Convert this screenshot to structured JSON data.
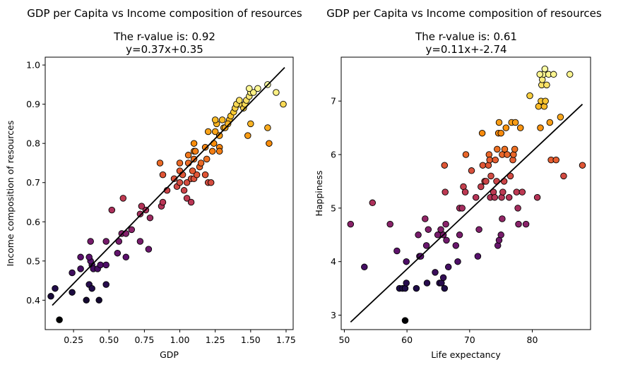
{
  "chart_data": [
    {
      "type": "scatter",
      "title": "GDP per Capita vs Income composition of resources",
      "subtitle_line1": "The r-value is: 0.92",
      "subtitle_line2": "y=0.37x+0.35",
      "xlabel": "GDP",
      "ylabel": "Income composition of resources",
      "xlim": [
        0.05,
        1.8
      ],
      "ylim": [
        0.325,
        1.02
      ],
      "xticks": [
        0.25,
        0.5,
        0.75,
        1.0,
        1.25,
        1.5,
        1.75
      ],
      "xtick_labels": [
        "0.25",
        "0.50",
        "0.75",
        "1.00",
        "1.25",
        "1.50",
        "1.75"
      ],
      "yticks": [
        0.4,
        0.5,
        0.6,
        0.7,
        0.8,
        0.9,
        1.0
      ],
      "ytick_labels": [
        "0.4",
        "0.5",
        "0.6",
        "0.7",
        "0.8",
        "0.9",
        "1.0"
      ],
      "grid": false,
      "colormap": "inferno",
      "regression": {
        "slope": 0.37,
        "intercept": 0.35,
        "x_range": [
          0.1,
          1.74
        ],
        "color": "#000000"
      },
      "points": [
        [
          0.15,
          0.35
        ],
        [
          0.09,
          0.41
        ],
        [
          0.12,
          0.43
        ],
        [
          0.24,
          0.42
        ],
        [
          0.34,
          0.4
        ],
        [
          0.43,
          0.4
        ],
        [
          0.36,
          0.44
        ],
        [
          0.38,
          0.43
        ],
        [
          0.48,
          0.44
        ],
        [
          0.38,
          0.49
        ],
        [
          0.37,
          0.5
        ],
        [
          0.39,
          0.48
        ],
        [
          0.42,
          0.48
        ],
        [
          0.44,
          0.49
        ],
        [
          0.48,
          0.49
        ],
        [
          0.24,
          0.47
        ],
        [
          0.3,
          0.48
        ],
        [
          0.36,
          0.51
        ],
        [
          0.3,
          0.51
        ],
        [
          0.37,
          0.55
        ],
        [
          0.48,
          0.55
        ],
        [
          0.56,
          0.52
        ],
        [
          0.62,
          0.51
        ],
        [
          0.57,
          0.55
        ],
        [
          0.59,
          0.57
        ],
        [
          0.62,
          0.57
        ],
        [
          0.66,
          0.58
        ],
        [
          0.72,
          0.55
        ],
        [
          0.78,
          0.53
        ],
        [
          0.72,
          0.62
        ],
        [
          0.76,
          0.63
        ],
        [
          0.79,
          0.61
        ],
        [
          0.6,
          0.66
        ],
        [
          0.52,
          0.63
        ],
        [
          0.73,
          0.64
        ],
        [
          0.87,
          0.64
        ],
        [
          0.88,
          0.65
        ],
        [
          0.91,
          0.68
        ],
        [
          0.88,
          0.72
        ],
        [
          0.86,
          0.75
        ],
        [
          0.98,
          0.69
        ],
        [
          1.0,
          0.73
        ],
        [
          1.02,
          0.72
        ],
        [
          1.05,
          0.66
        ],
        [
          1.08,
          0.65
        ],
        [
          1.03,
          0.68
        ],
        [
          1.05,
          0.7
        ],
        [
          1.08,
          0.71
        ],
        [
          1.1,
          0.71
        ],
        [
          1.12,
          0.72
        ],
        [
          1.0,
          0.75
        ],
        [
          1.06,
          0.75
        ],
        [
          1.09,
          0.73
        ],
        [
          1.1,
          0.76
        ],
        [
          1.14,
          0.74
        ],
        [
          1.15,
          0.75
        ],
        [
          1.18,
          0.72
        ],
        [
          1.2,
          0.7
        ],
        [
          1.22,
          0.7
        ],
        [
          1.24,
          0.8
        ],
        [
          1.18,
          0.79
        ],
        [
          1.19,
          0.76
        ],
        [
          1.06,
          0.77
        ],
        [
          1.1,
          0.78
        ],
        [
          1.1,
          0.8
        ],
        [
          1.11,
          0.78
        ],
        [
          1.23,
          0.78
        ],
        [
          1.28,
          0.79
        ],
        [
          1.28,
          0.78
        ],
        [
          1.2,
          0.83
        ],
        [
          1.25,
          0.83
        ],
        [
          1.28,
          0.82
        ],
        [
          1.31,
          0.84
        ],
        [
          1.32,
          0.84
        ],
        [
          1.35,
          0.86
        ],
        [
          1.26,
          0.85
        ],
        [
          1.25,
          0.86
        ],
        [
          1.3,
          0.86
        ],
        [
          1.34,
          0.85
        ],
        [
          1.36,
          0.87
        ],
        [
          1.38,
          0.88
        ],
        [
          1.39,
          0.89
        ],
        [
          1.42,
          0.9
        ],
        [
          1.45,
          0.89
        ],
        [
          1.46,
          0.9
        ],
        [
          1.48,
          0.82
        ],
        [
          1.5,
          0.85
        ],
        [
          1.62,
          0.84
        ],
        [
          1.63,
          0.8
        ],
        [
          1.47,
          0.91
        ],
        [
          1.49,
          0.92
        ],
        [
          1.5,
          0.93
        ],
        [
          1.52,
          0.93
        ],
        [
          1.55,
          0.94
        ],
        [
          1.49,
          0.94
        ],
        [
          1.4,
          0.9
        ],
        [
          1.42,
          0.91
        ],
        [
          1.62,
          0.95
        ],
        [
          1.68,
          0.93
        ],
        [
          1.73,
          0.9
        ],
        [
          1.0,
          0.7
        ],
        [
          0.96,
          0.71
        ]
      ]
    },
    {
      "type": "scatter",
      "title": "GDP per Capita vs Income composition of resources",
      "subtitle_line1": "The r-value is: 0.61",
      "subtitle_line2": "y=0.11x+-2.74",
      "xlabel": "Life expectancy",
      "ylabel": "Happiness",
      "xlim": [
        49.5,
        89.3
      ],
      "ylim": [
        2.73,
        7.82
      ],
      "xticks": [
        50,
        60,
        70,
        80
      ],
      "xtick_labels": [
        "50",
        "60",
        "70",
        "80"
      ],
      "yticks": [
        3,
        4,
        5,
        6,
        7
      ],
      "ytick_labels": [
        "3",
        "4",
        "5",
        "6",
        "7"
      ],
      "grid": false,
      "colormap": "inferno",
      "regression": {
        "slope": 0.11,
        "intercept": -2.74,
        "x_range": [
          51,
          88
        ],
        "color": "#000000"
      },
      "points": [
        [
          59.7,
          2.9
        ],
        [
          51.0,
          4.7
        ],
        [
          53.2,
          3.9
        ],
        [
          54.5,
          5.1
        ],
        [
          57.3,
          4.7
        ],
        [
          58.4,
          4.2
        ],
        [
          58.8,
          3.5
        ],
        [
          59.3,
          3.5
        ],
        [
          59.7,
          3.5
        ],
        [
          59.9,
          3.6
        ],
        [
          59.9,
          4.0
        ],
        [
          61.5,
          3.5
        ],
        [
          62.0,
          4.1
        ],
        [
          62.2,
          4.1
        ],
        [
          63.1,
          4.3
        ],
        [
          63.2,
          3.6
        ],
        [
          61.8,
          4.5
        ],
        [
          62.9,
          4.8
        ],
        [
          63.4,
          4.6
        ],
        [
          64.5,
          3.8
        ],
        [
          64.9,
          4.5
        ],
        [
          65.2,
          3.6
        ],
        [
          65.5,
          3.6
        ],
        [
          65.8,
          3.7
        ],
        [
          66.0,
          3.5
        ],
        [
          66.3,
          4.4
        ],
        [
          66.6,
          3.9
        ],
        [
          65.8,
          4.5
        ],
        [
          65.4,
          4.6
        ],
        [
          66.0,
          5.8
        ],
        [
          66.1,
          5.3
        ],
        [
          66.2,
          4.7
        ],
        [
          67.8,
          4.3
        ],
        [
          68.1,
          4.0
        ],
        [
          68.4,
          4.5
        ],
        [
          68.4,
          5.0
        ],
        [
          68.8,
          5.0
        ],
        [
          69.0,
          5.4
        ],
        [
          69.3,
          5.3
        ],
        [
          69.4,
          6.0
        ],
        [
          70.3,
          5.7
        ],
        [
          71.0,
          5.2
        ],
        [
          71.3,
          4.1
        ],
        [
          71.5,
          4.6
        ],
        [
          71.8,
          5.4
        ],
        [
          72.0,
          6.4
        ],
        [
          72.1,
          5.8
        ],
        [
          72.4,
          5.5
        ],
        [
          72.6,
          5.5
        ],
        [
          73.0,
          5.8
        ],
        [
          73.1,
          6.0
        ],
        [
          73.2,
          5.9
        ],
        [
          73.3,
          5.2
        ],
        [
          73.4,
          5.6
        ],
        [
          73.8,
          5.3
        ],
        [
          74.0,
          5.2
        ],
        [
          74.1,
          5.9
        ],
        [
          74.3,
          5.5
        ],
        [
          74.4,
          6.1
        ],
        [
          74.6,
          6.4
        ],
        [
          74.7,
          6.6
        ],
        [
          75.0,
          6.4
        ],
        [
          75.1,
          5.2
        ],
        [
          75.2,
          6.0
        ],
        [
          74.5,
          4.3
        ],
        [
          74.7,
          4.4
        ],
        [
          75.0,
          4.5
        ],
        [
          75.2,
          4.8
        ],
        [
          75.3,
          5.3
        ],
        [
          75.5,
          5.5
        ],
        [
          75.6,
          6.1
        ],
        [
          75.8,
          6.5
        ],
        [
          76.0,
          6.0
        ],
        [
          76.3,
          5.2
        ],
        [
          76.5,
          5.6
        ],
        [
          76.7,
          6.6
        ],
        [
          76.9,
          5.9
        ],
        [
          77.0,
          6.0
        ],
        [
          77.2,
          6.1
        ],
        [
          77.3,
          6.6
        ],
        [
          77.5,
          5.3
        ],
        [
          77.7,
          5.0
        ],
        [
          77.8,
          4.7
        ],
        [
          78.1,
          6.5
        ],
        [
          78.4,
          5.3
        ],
        [
          79.0,
          4.7
        ],
        [
          79.6,
          7.1
        ],
        [
          80.8,
          5.2
        ],
        [
          81.0,
          6.9
        ],
        [
          81.3,
          6.5
        ],
        [
          81.4,
          7.0
        ],
        [
          81.5,
          7.3
        ],
        [
          81.6,
          7.4
        ],
        [
          81.8,
          7.5
        ],
        [
          81.9,
          6.9
        ],
        [
          82.1,
          7.0
        ],
        [
          82.3,
          7.3
        ],
        [
          82.6,
          7.5
        ],
        [
          82.8,
          6.6
        ],
        [
          83.0,
          5.9
        ],
        [
          83.4,
          7.5
        ],
        [
          83.8,
          5.9
        ],
        [
          84.5,
          6.7
        ],
        [
          85.0,
          5.6
        ],
        [
          86.0,
          7.5
        ],
        [
          88.0,
          5.8
        ],
        [
          82.0,
          7.6
        ],
        [
          81.2,
          7.5
        ]
      ]
    }
  ]
}
